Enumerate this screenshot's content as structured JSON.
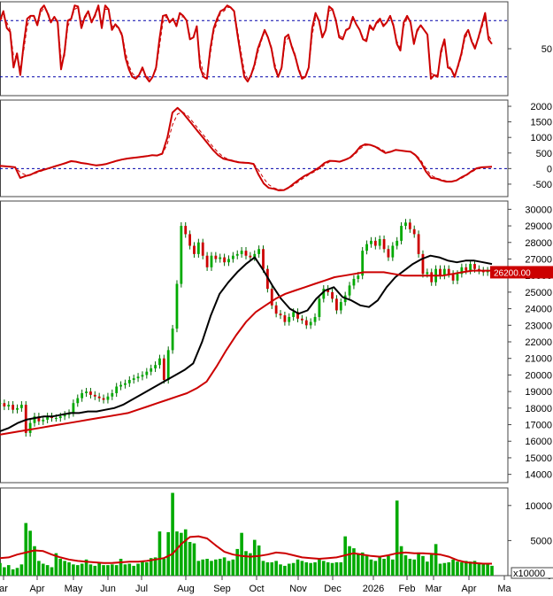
{
  "chart_data": [
    {
      "panel": "stochastic-oscillator",
      "type": "line",
      "y_ticks": [
        50
      ],
      "reference_levels": [
        80,
        20
      ],
      "series": [
        {
          "color": "#cc0000",
          "style": "solid",
          "values": [
            80,
            90,
            72,
            68,
            30,
            45,
            22,
            55,
            82,
            85,
            85,
            75,
            92,
            96,
            88,
            78,
            84,
            78,
            28,
            46,
            80,
            82,
            96,
            95,
            72,
            84,
            90,
            78,
            86,
            96,
            72,
            96,
            92,
            70,
            76,
            72,
            64,
            40,
            28,
            20,
            18,
            22,
            30,
            20,
            15,
            20,
            30,
            60,
            85,
            86,
            78,
            82,
            74,
            88,
            85,
            80,
            60,
            62,
            74,
            30,
            20,
            18,
            50,
            72,
            82,
            90,
            92,
            96,
            94,
            90,
            65,
            42,
            20,
            15,
            22,
            33,
            50,
            60,
            70,
            62,
            50,
            30,
            20,
            30,
            62,
            65,
            52,
            42,
            28,
            18,
            20,
            30,
            72,
            88,
            80,
            62,
            70,
            95,
            92,
            80,
            62,
            60,
            70,
            72,
            84,
            76,
            70,
            60,
            58,
            75,
            70,
            78,
            82,
            74,
            78,
            85,
            74,
            55,
            48,
            78,
            85,
            78,
            55,
            70,
            75,
            70,
            65,
            18,
            22,
            20,
            48,
            60,
            30,
            28,
            20,
            32,
            45,
            64,
            70,
            58,
            50,
            62,
            75,
            88,
            60,
            55
          ]
        },
        {
          "color": "#cc0000",
          "style": "dashed",
          "values": [
            80,
            85,
            78,
            70,
            42,
            42,
            30,
            48,
            74,
            84,
            84,
            78,
            88,
            94,
            90,
            80,
            82,
            80,
            40,
            42,
            74,
            82,
            92,
            94,
            78,
            82,
            88,
            80,
            84,
            94,
            76,
            92,
            92,
            74,
            74,
            72,
            66,
            46,
            32,
            24,
            20,
            22,
            28,
            22,
            18,
            20,
            28,
            52,
            78,
            84,
            80,
            80,
            76,
            84,
            84,
            80,
            64,
            62,
            72,
            38,
            24,
            20,
            44,
            68,
            78,
            88,
            90,
            94,
            94,
            90,
            70,
            48,
            26,
            18,
            22,
            30,
            46,
            58,
            68,
            62,
            52,
            34,
            22,
            28,
            56,
            62,
            54,
            44,
            30,
            20,
            20,
            28,
            64,
            84,
            80,
            64,
            70,
            90,
            92,
            82,
            64,
            62,
            68,
            72,
            82,
            76,
            70,
            62,
            60,
            72,
            70,
            76,
            80,
            76,
            78,
            84,
            76,
            58,
            50,
            74,
            82,
            78,
            58,
            68,
            74,
            70,
            66,
            24,
            22,
            22,
            44,
            58,
            34,
            28,
            22,
            30,
            42,
            60,
            68,
            60,
            52,
            60,
            72,
            84,
            64,
            58
          ]
        }
      ]
    },
    {
      "panel": "macd",
      "type": "line",
      "ylim": [
        -900,
        2200
      ],
      "y_ticks": [
        2000,
        1500,
        1000,
        500,
        0,
        -500
      ],
      "reference_levels": [
        0
      ],
      "series": [
        {
          "color": "#cc0000",
          "style": "solid",
          "values": [
            90,
            75,
            60,
            40,
            -300,
            -240,
            -200,
            -120,
            -60,
            -20,
            30,
            80,
            130,
            180,
            240,
            220,
            180,
            160,
            130,
            100,
            120,
            150,
            200,
            250,
            290,
            320,
            340,
            360,
            380,
            400,
            430,
            420,
            480,
            1000,
            1800,
            1950,
            1800,
            1600,
            1400,
            1200,
            1000,
            800,
            600,
            430,
            320,
            280,
            240,
            200,
            190,
            180,
            150,
            -200,
            -480,
            -620,
            -650,
            -700,
            -690,
            -600,
            -470,
            -350,
            -240,
            -160,
            -60,
            40,
            180,
            250,
            240,
            220,
            280,
            350,
            500,
            700,
            780,
            760,
            700,
            600,
            500,
            540,
            600,
            580,
            560,
            540,
            420,
            200,
            -100,
            -300,
            -320,
            -380,
            -420,
            -420,
            -380,
            -280,
            -200,
            -80,
            10,
            40,
            50,
            60
          ]
        },
        {
          "color": "#cc0000",
          "style": "dashed",
          "values": [
            70,
            70,
            60,
            40,
            -120,
            -200,
            -210,
            -150,
            -90,
            -30,
            20,
            70,
            120,
            170,
            220,
            220,
            190,
            160,
            130,
            110,
            120,
            150,
            190,
            240,
            280,
            310,
            330,
            350,
            370,
            390,
            420,
            420,
            460,
            800,
            1400,
            1750,
            1820,
            1700,
            1500,
            1300,
            1100,
            900,
            700,
            520,
            380,
            300,
            260,
            220,
            200,
            180,
            160,
            -50,
            -320,
            -520,
            -620,
            -670,
            -690,
            -630,
            -520,
            -400,
            -290,
            -190,
            -100,
            0,
            120,
            220,
            240,
            230,
            270,
            330,
            460,
            640,
            740,
            760,
            720,
            640,
            540,
            540,
            590,
            580,
            560,
            540,
            450,
            260,
            0,
            -220,
            -300,
            -350,
            -400,
            -410,
            -390,
            -310,
            -220,
            -110,
            -20,
            30,
            45,
            55
          ]
        }
      ]
    },
    {
      "panel": "price",
      "type": "candlestick",
      "ylim": [
        13500,
        30500
      ],
      "y_ticks": [
        30000,
        29000,
        28000,
        27000,
        26000,
        25000,
        24000,
        23000,
        22000,
        21000,
        20000,
        19000,
        18000,
        17000,
        16000,
        15000,
        14000
      ],
      "last_price_label": "26200.00",
      "closes": [
        18300,
        18100,
        18200,
        17900,
        18000,
        18200,
        16500,
        17100,
        17500,
        17200,
        17300,
        17500,
        17400,
        17400,
        17500,
        17600,
        17700,
        18300,
        18600,
        18900,
        19000,
        18800,
        18700,
        18600,
        18500,
        18700,
        18900,
        19300,
        19400,
        19500,
        19700,
        19800,
        19900,
        20000,
        20200,
        20400,
        20600,
        21000,
        19700,
        21500,
        22800,
        25500,
        29000,
        28500,
        27800,
        27300,
        28000,
        27200,
        26500,
        27200,
        27000,
        27100,
        26800,
        27000,
        27200,
        27300,
        27500,
        27200,
        27100,
        27300,
        27600,
        26400,
        25200,
        24200,
        23700,
        23600,
        23200,
        23500,
        23800,
        23400,
        23300,
        23000,
        23200,
        23500,
        24600,
        25200,
        25000,
        24600,
        23900,
        24400,
        24800,
        25400,
        25800,
        26000,
        27500,
        27900,
        28100,
        27800,
        28200,
        27600,
        27100,
        27800,
        28100,
        29000,
        29200,
        28800,
        28500,
        27300,
        26100,
        26200,
        25600,
        26400,
        26000,
        26400,
        26100,
        25700,
        26100,
        26500,
        26300,
        26700,
        26400,
        26300,
        26200,
        26300,
        26200
      ],
      "series": [
        {
          "type": "line",
          "color": "#000000",
          "values": [
            16600,
            16800,
            17100,
            17300,
            17400,
            17500,
            17500,
            17600,
            17700,
            17700,
            17800,
            17800,
            17900,
            18000,
            18200,
            18500,
            18800,
            19100,
            19400,
            19700,
            20000,
            20300,
            20700,
            22000,
            23600,
            24900,
            25600,
            26200,
            26700,
            27100,
            26300,
            25400,
            24600,
            24000,
            23700,
            23900,
            24600,
            25100,
            25300,
            24700,
            24500,
            24200,
            24100,
            24500,
            25300,
            25900,
            26300,
            26700,
            27000,
            27200,
            27100,
            26900,
            26800,
            26900,
            26900,
            26800,
            26700
          ]
        },
        {
          "type": "line",
          "color": "#cc0000",
          "values": [
            16400,
            16500,
            16600,
            16700,
            16800,
            16900,
            17000,
            17100,
            17200,
            17300,
            17400,
            17500,
            17600,
            17700,
            17900,
            18100,
            18300,
            18500,
            18700,
            18900,
            19200,
            19600,
            20500,
            21500,
            22400,
            23200,
            23800,
            24200,
            24600,
            24900,
            25100,
            25300,
            25500,
            25700,
            25900,
            26000,
            26100,
            26200,
            26200,
            26200,
            26100,
            26000,
            26000,
            26000,
            26000,
            26000,
            26100,
            26200,
            26300,
            26300,
            26300
          ]
        }
      ]
    },
    {
      "panel": "volume",
      "type": "bar",
      "ylim": [
        0,
        12500
      ],
      "y_ticks": [
        10000,
        5000,
        0
      ],
      "unit_label": "x10000",
      "x_tick_labels": [
        "ar",
        "Apr",
        "May",
        "Jun",
        "Jul",
        "Aug",
        "Sep",
        "Oct",
        "Nov",
        "Dec",
        "2026",
        "Feb",
        "Mar",
        "Apr",
        "Ma"
      ],
      "values": [
        1800,
        1200,
        1500,
        900,
        1100,
        1600,
        7500,
        6400,
        4200,
        2100,
        1700,
        1500,
        1200,
        3200,
        2400,
        2100,
        1900,
        1600,
        1500,
        1700,
        2300,
        1600,
        1400,
        1800,
        1500,
        1500,
        1600,
        1500,
        2400,
        1600,
        1700,
        1400,
        1700,
        2100,
        1900,
        2500,
        2600,
        6300,
        2400,
        6200,
        11800,
        6300,
        6100,
        6600,
        4800,
        4600,
        2100,
        2300,
        2400,
        2100,
        2300,
        2400,
        2600,
        2100,
        2300,
        3800,
        6100,
        3500,
        3200,
        5100,
        4300,
        2100,
        1900,
        1900,
        2100,
        1600,
        1400,
        1700,
        1800,
        2300,
        2100,
        1900,
        1800,
        1900,
        2400,
        2100,
        1900,
        1800,
        1900,
        1900,
        5600,
        4200,
        3900,
        3100,
        3300,
        2800,
        2300,
        2100,
        2600,
        2400,
        2800,
        2300,
        10700,
        4200,
        2900,
        2400,
        2300,
        3300,
        2800,
        2000,
        3000,
        4500,
        1700,
        1800,
        1900,
        2300,
        2000,
        1900,
        2100,
        2000,
        2100,
        1700,
        1600,
        1800,
        1400
      ],
      "series": [
        {
          "type": "line",
          "color": "#cc0000",
          "values": [
            2500,
            2600,
            3000,
            3300,
            3600,
            3500,
            3000,
            2600,
            2300,
            2100,
            2000,
            1900,
            1800,
            1800,
            1900,
            2000,
            2000,
            2100,
            2300,
            2500,
            3100,
            4500,
            5500,
            5600,
            5300,
            4300,
            3400,
            3000,
            2800,
            2700,
            2800,
            3000,
            3300,
            3200,
            2900,
            2600,
            2500,
            2400,
            2500,
            2600,
            2900,
            3200,
            3000,
            2800,
            2700,
            2900,
            3200,
            3300,
            3200,
            3200,
            3100,
            3000,
            2700,
            2200,
            1900,
            1800,
            1700,
            1700
          ]
        }
      ]
    }
  ]
}
